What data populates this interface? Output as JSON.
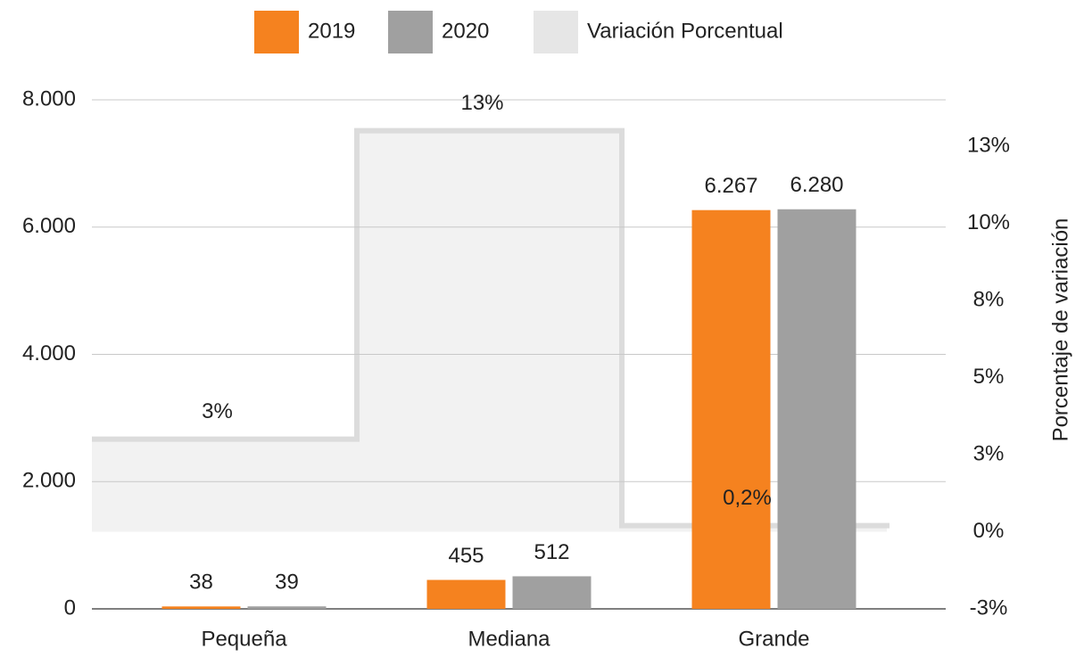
{
  "chart_data": {
    "type": "bar",
    "categories": [
      "Pequeña",
      "Mediana",
      "Grande"
    ],
    "series": [
      {
        "name": "2019",
        "color": "#f5821f",
        "values": [
          38,
          455,
          6267
        ],
        "value_labels": [
          "38",
          "455",
          "6.267"
        ]
      },
      {
        "name": "2020",
        "color": "#a0a0a0",
        "values": [
          39,
          512,
          6280
        ],
        "value_labels": [
          "39",
          "512",
          "6.280"
        ]
      },
      {
        "name": "Variación Porcentual",
        "color": "#f2f2f2",
        "type": "area",
        "axis": "y2",
        "values": [
          3,
          13,
          0.2
        ],
        "value_labels": [
          "3%",
          "13%",
          "0,2%"
        ]
      }
    ],
    "ylim": [
      0,
      8000
    ],
    "yticks": [
      0,
      {
        "value": 2000,
        "label": "2.000"
      },
      {
        "value": 4000,
        "label": "4.000"
      },
      {
        "value": 6000,
        "label": "6.000"
      },
      {
        "value": 8000,
        "label": "8.000"
      }
    ],
    "y2label": "Porcentaje de variación",
    "y2lim": [
      -2.5,
      14
    ],
    "y2ticks": [
      {
        "value": -2.5,
        "label": "-3%"
      },
      {
        "value": 0,
        "label": "0%"
      },
      {
        "value": 2.5,
        "label": "3%"
      },
      {
        "value": 5,
        "label": "5%"
      },
      {
        "value": 7.5,
        "label": "8%"
      },
      {
        "value": 10,
        "label": "10%"
      },
      {
        "value": 12.5,
        "label": "13%"
      }
    ],
    "grid": true,
    "legend": "top"
  }
}
